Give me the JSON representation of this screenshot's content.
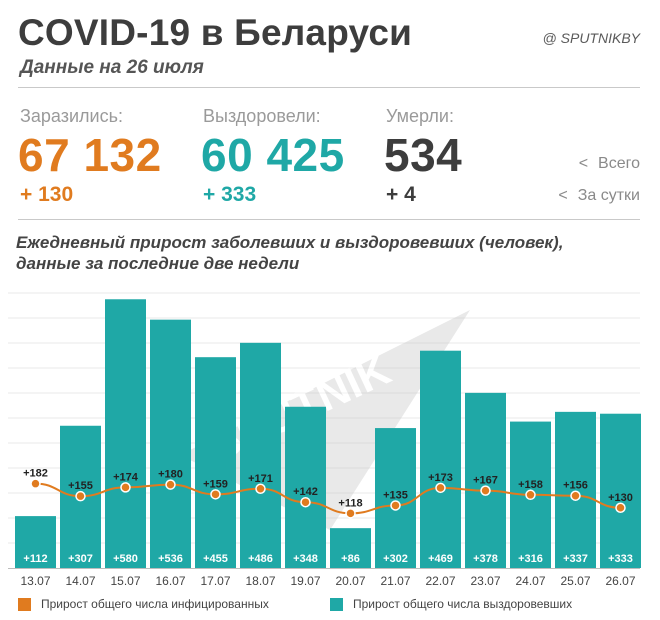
{
  "header": {
    "title": "COVID-19 в Беларуси",
    "subtitle": "Данные на 26 июля",
    "brand": "@ SPUTNIKBY"
  },
  "stats": {
    "infected": {
      "label": "Заразились:",
      "total": "67 132",
      "delta": "+ 130",
      "color": "#e07b1f"
    },
    "recovered": {
      "label": "Выздоровели:",
      "total": "60 425",
      "delta": "+ 333",
      "color": "#1fa8a6"
    },
    "died": {
      "label": "Умерли:",
      "total": "534",
      "delta": "+ 4",
      "color": "#3d3d3d"
    }
  },
  "side_legend": {
    "chevron": "<",
    "total_label": "Всего",
    "daily_label": "За сутки"
  },
  "watermark": "SPUTNIK",
  "chart_title_line1": "Ежедневный прирост заболевших и выздоровевших (человек),",
  "chart_title_line2": "данные за последние две недели",
  "legend": {
    "infected": "Прирост общего числа инфицированных",
    "recovered": "Прирост общего числа выздоровевших"
  },
  "chart_data": {
    "type": "bar",
    "categories": [
      "13.07",
      "14.07",
      "15.07",
      "16.07",
      "17.07",
      "18.07",
      "19.07",
      "20.07",
      "21.07",
      "22.07",
      "23.07",
      "24.07",
      "25.07",
      "26.07"
    ],
    "series": [
      {
        "name": "Прирост общего числа выздоровевших",
        "type": "bar",
        "color": "#1fa8a6",
        "values": [
          112,
          307,
          580,
          536,
          455,
          486,
          348,
          86,
          302,
          469,
          378,
          316,
          337,
          333
        ],
        "labels": [
          "+112",
          "+307",
          "+580",
          "+536",
          "+455",
          "+486",
          "+348",
          "+86",
          "+302",
          "+469",
          "+378",
          "+316",
          "+337",
          "+333"
        ]
      },
      {
        "name": "Прирост общего числа инфицированных",
        "type": "line",
        "color": "#e07b1f",
        "values": [
          182,
          155,
          174,
          180,
          159,
          171,
          142,
          118,
          135,
          173,
          167,
          158,
          156,
          130
        ],
        "labels": [
          "+182",
          "+155",
          "+174",
          "+180",
          "+159",
          "+171",
          "+142",
          "+118",
          "+135",
          "+173",
          "+167",
          "+158",
          "+156",
          "+130"
        ]
      }
    ],
    "ylim": [
      0,
      600
    ],
    "grid": true,
    "legend_position": "bottom"
  }
}
